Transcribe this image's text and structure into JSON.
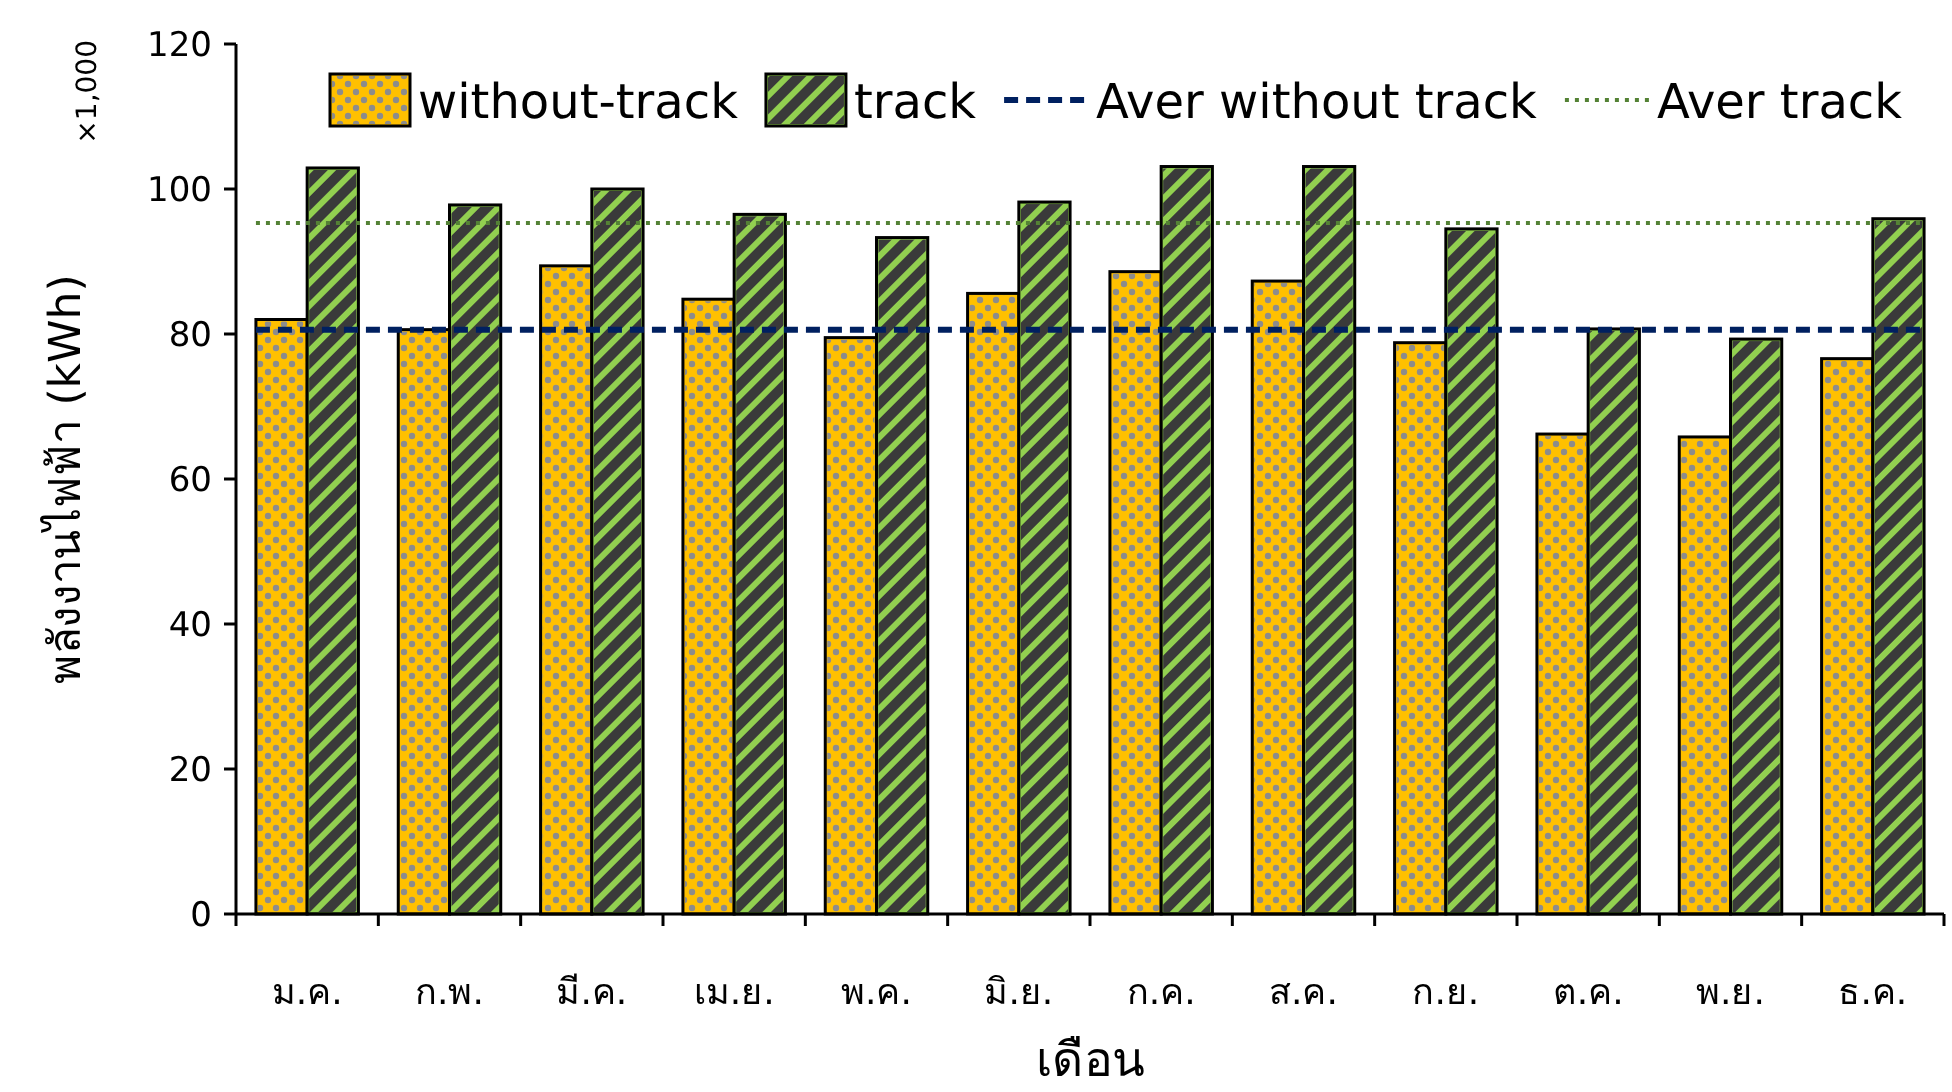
{
  "chart_data": {
    "type": "bar",
    "ylabel": "พลังงานไฟฟ้า (kWh)",
    "xlabel": "เดือน",
    "annotations": [
      "×1,000"
    ],
    "categories": [
      "ม.ค.",
      "ก.พ.",
      "มี.ค.",
      "เม.ย.",
      "พ.ค.",
      "มิ.ย.",
      "ก.ค.",
      "ส.ค.",
      "ก.ย.",
      "ต.ค.",
      "พ.ย.",
      "ธ.ค."
    ],
    "series": [
      {
        "name": "without-track",
        "color": "#ffc000",
        "values": [
          82,
          80.6,
          89.4,
          84.8,
          79.5,
          85.6,
          88.6,
          87.3,
          78.8,
          66.2,
          65.8,
          76.6
        ]
      },
      {
        "name": "track",
        "color": "#92d050",
        "values": [
          102.9,
          97.8,
          100,
          96.5,
          93.3,
          98.2,
          103.1,
          103.1,
          94.5,
          80.7,
          79.3,
          95.9
        ]
      }
    ],
    "ref_lines": [
      {
        "axis": "y",
        "value": 80.6,
        "label": "Aver without track",
        "color": "#002060",
        "line_style": "dashed"
      },
      {
        "axis": "y",
        "value": 95.3,
        "label": "Aver track",
        "color": "#548235",
        "line_style": "dotted"
      }
    ],
    "ylim": [
      0,
      120
    ],
    "yticks": [
      0,
      20,
      40,
      60,
      80,
      100,
      120
    ],
    "grid": false,
    "legend": "top"
  }
}
